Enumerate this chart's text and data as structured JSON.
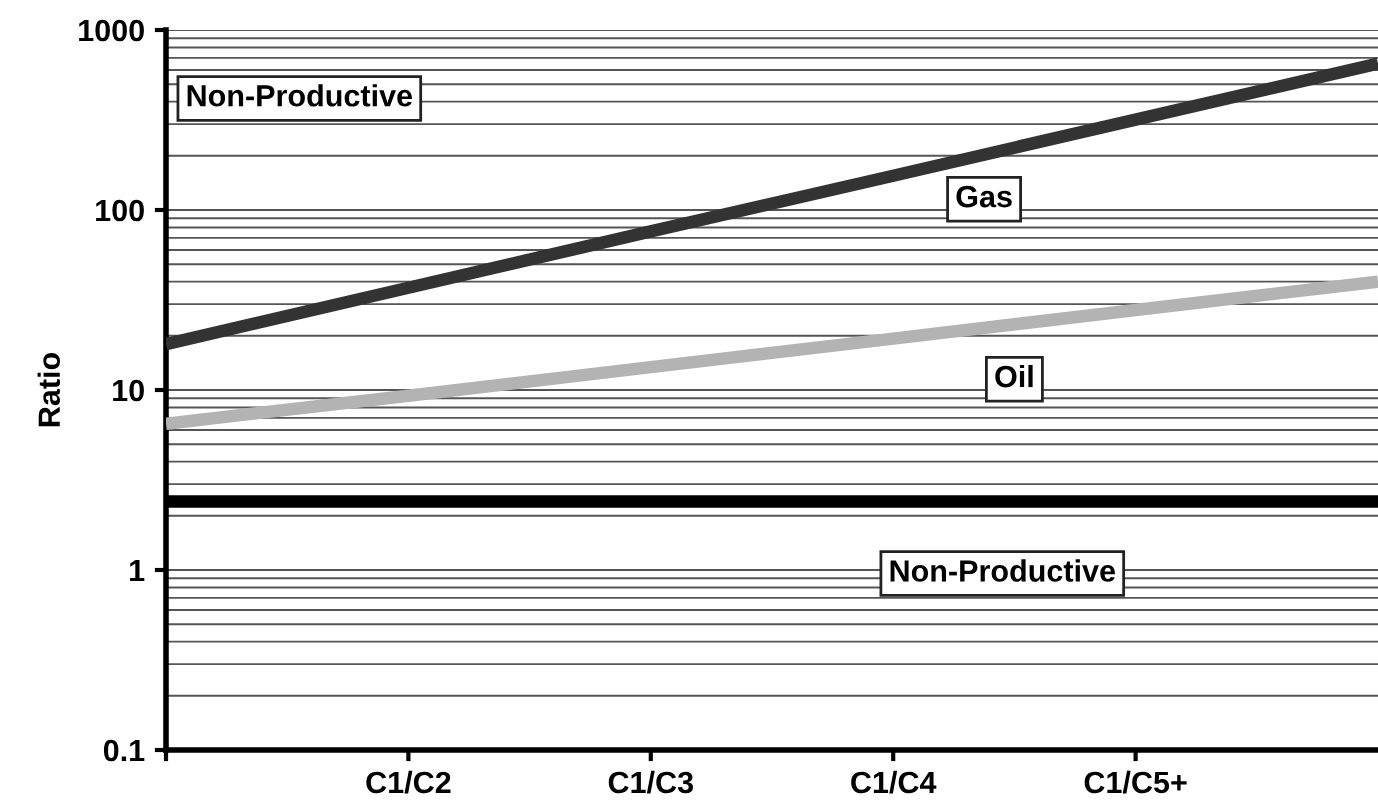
{
  "chart_data": {
    "type": "line",
    "ylabel": "Ratio",
    "log": "y",
    "categories": [
      null,
      "C1/C2",
      "C1/C3",
      "C1/C4",
      "C1/C5+",
      null
    ],
    "ylim": [
      0.1,
      1000
    ],
    "yticks": [
      0.1,
      1,
      10,
      100,
      1000
    ],
    "grid": "y",
    "marker": "none",
    "line_style": "solid",
    "series": [
      {
        "color": "#333333",
        "values": [
          18,
          37,
          76,
          155,
          318,
          650
        ]
      },
      {
        "color": "#b3b3b3",
        "values": [
          6.5,
          9.3,
          13.4,
          19.3,
          27.8,
          40
        ]
      }
    ],
    "ref_lines": [
      {
        "axis": "y",
        "value": 2.4,
        "color": "#000000",
        "line_style": "solid"
      }
    ],
    "annotations": [
      "Non-Productive",
      "Gas",
      "Oil",
      "Non-Productive"
    ]
  }
}
